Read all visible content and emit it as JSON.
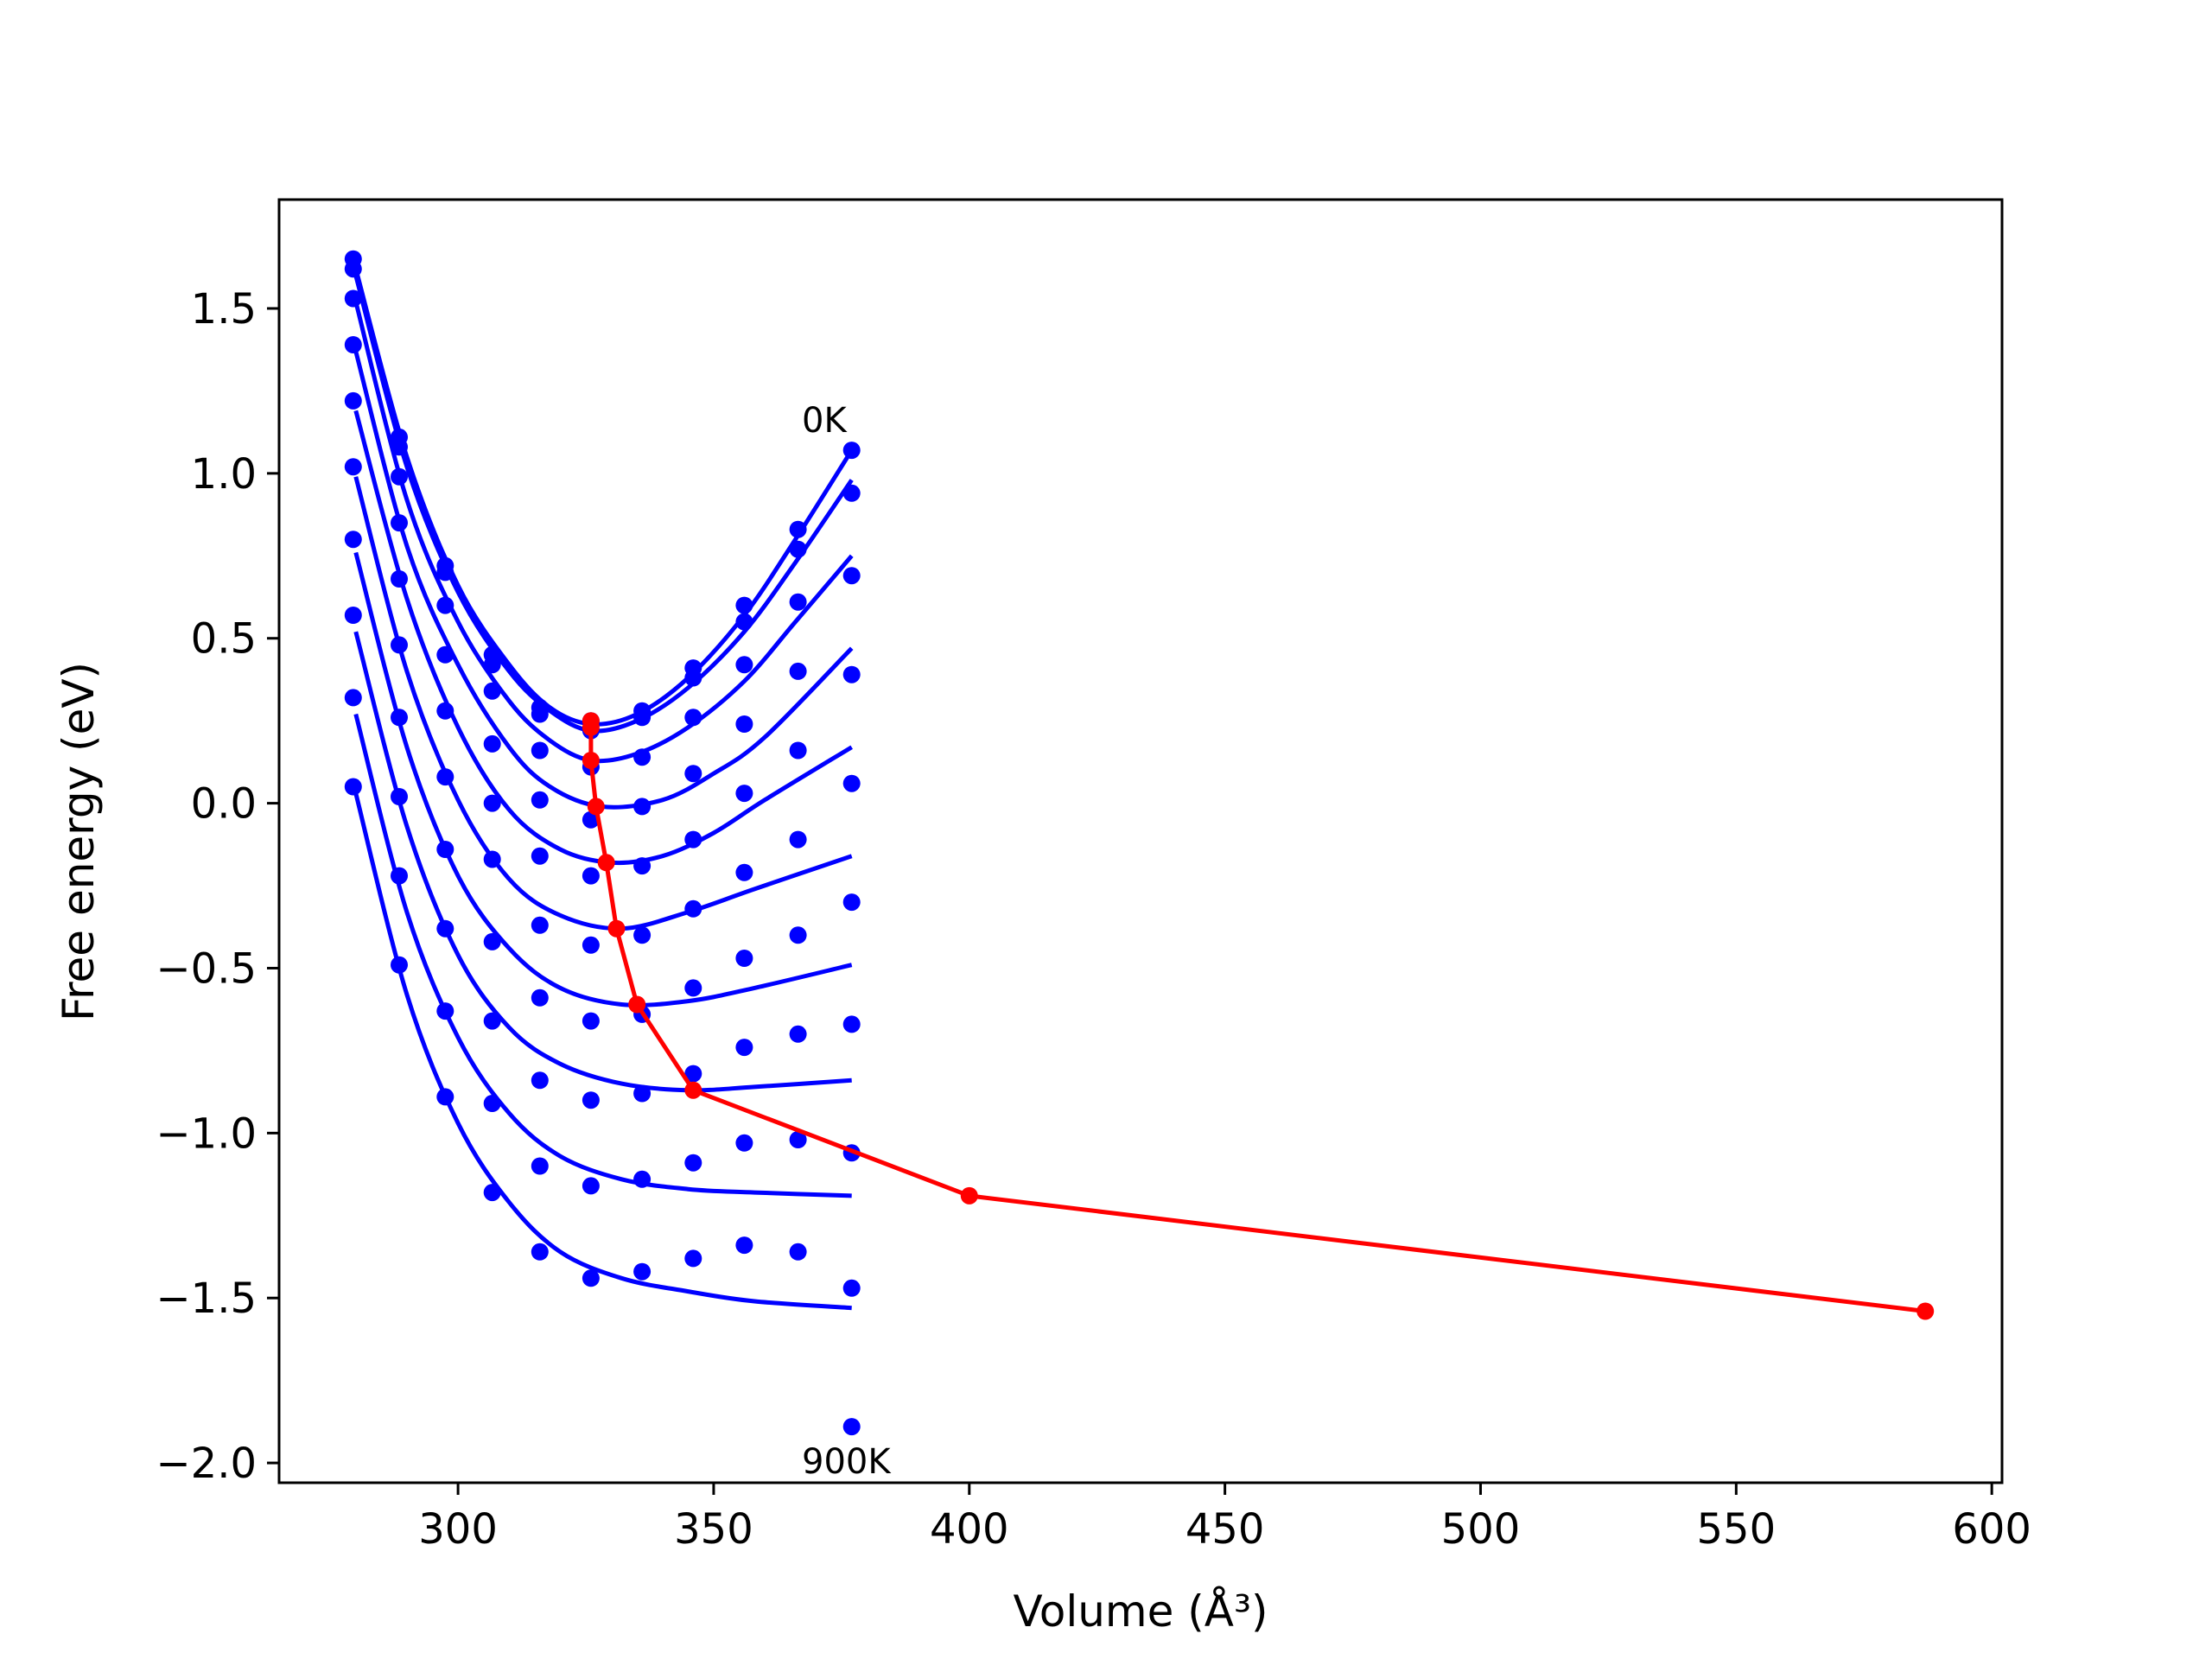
{
  "chart_data": {
    "type": "line",
    "title": "",
    "xlabel": "Volume (Å³)",
    "ylabel": "Free energy (eV)",
    "xlim": [
      265,
      602
    ],
    "ylim": [
      -2.06,
      1.83
    ],
    "xticks": [
      300,
      350,
      400,
      450,
      500,
      550,
      600
    ],
    "yticks": [
      -2.0,
      -1.5,
      -1.0,
      -0.5,
      0.0,
      0.5,
      1.0,
      1.5
    ],
    "xtick_labels": [
      "300",
      "350",
      "400",
      "450",
      "500",
      "550",
      "600"
    ],
    "ytick_labels": [
      "−2.0",
      "−1.5",
      "−1.0",
      "−0.5",
      "0.0",
      "0.5",
      "1.0",
      "1.5"
    ],
    "grid": false,
    "annotations": [
      {
        "text": "0K",
        "x": 372,
        "y": 1.13
      },
      {
        "text": "900K",
        "x": 372,
        "y": -2.03
      }
    ],
    "sample_volumes": [
      279.5,
      288.5,
      297.5,
      306.7,
      316,
      326,
      336,
      346,
      356,
      366.5,
      377
    ],
    "fit_curves": [
      {
        "temperature": "0K",
        "x": [
          280,
          290,
          300,
          310,
          318,
          326,
          335,
          345,
          356,
          366,
          377
        ],
        "y": [
          1.62,
          1.05,
          0.66,
          0.42,
          0.29,
          0.24,
          0.27,
          0.38,
          0.57,
          0.8,
          1.07
        ]
      },
      {
        "x": [
          280,
          290,
          300,
          310,
          318,
          326,
          335,
          345,
          356,
          366,
          377
        ],
        "y": [
          1.6,
          1.02,
          0.64,
          0.4,
          0.28,
          0.22,
          0.25,
          0.35,
          0.52,
          0.73,
          0.98
        ]
      },
      {
        "x": [
          280,
          290,
          300,
          310,
          318,
          326,
          335,
          345,
          356,
          366,
          377
        ],
        "y": [
          1.52,
          0.92,
          0.55,
          0.31,
          0.19,
          0.13,
          0.15,
          0.23,
          0.37,
          0.55,
          0.75
        ]
      },
      {
        "x": [
          280,
          290,
          300,
          310,
          318,
          328,
          340,
          350,
          360,
          377
        ],
        "y": [
          1.37,
          0.78,
          0.42,
          0.17,
          0.05,
          -0.01,
          0.01,
          0.09,
          0.2,
          0.47
        ]
      },
      {
        "x": [
          280,
          290,
          300,
          310,
          320,
          330,
          340,
          350,
          360,
          377
        ],
        "y": [
          1.19,
          0.62,
          0.23,
          -0.02,
          -0.14,
          -0.18,
          -0.16,
          -0.09,
          0.01,
          0.17
        ]
      },
      {
        "x": [
          280,
          290,
          300,
          310,
          320,
          332,
          345,
          358,
          377
        ],
        "y": [
          0.99,
          0.4,
          0.01,
          -0.23,
          -0.34,
          -0.38,
          -0.33,
          -0.26,
          -0.16
        ]
      },
      {
        "x": [
          280,
          290,
          300,
          310,
          320,
          332,
          345,
          358,
          377
        ],
        "y": [
          0.76,
          0.17,
          -0.22,
          -0.44,
          -0.56,
          -0.61,
          -0.6,
          -0.56,
          -0.49
        ]
      },
      {
        "x": [
          280,
          290,
          300,
          310,
          320,
          332,
          345,
          358,
          377
        ],
        "y": [
          0.52,
          -0.07,
          -0.46,
          -0.68,
          -0.79,
          -0.85,
          -0.87,
          -0.86,
          -0.84
        ]
      },
      {
        "x": [
          280,
          290,
          300,
          310,
          320,
          332,
          345,
          358,
          377
        ],
        "y": [
          0.27,
          -0.33,
          -0.71,
          -0.94,
          -1.07,
          -1.14,
          -1.17,
          -1.18,
          -1.19
        ]
      },
      {
        "temperature": "900K",
        "x": [
          280,
          290,
          300,
          310,
          320,
          332,
          345,
          358,
          377
        ],
        "y": [
          0.03,
          -0.58,
          -0.97,
          -1.21,
          -1.36,
          -1.44,
          -1.48,
          -1.51,
          -1.53
        ]
      }
    ],
    "data_points": [
      [
        1.65,
        1.11,
        0.72,
        0.45,
        0.29,
        0.25,
        0.28,
        0.41,
        0.6,
        0.83,
        1.07
      ],
      [
        1.62,
        1.08,
        0.7,
        0.42,
        0.27,
        0.22,
        0.26,
        0.38,
        0.55,
        0.77,
        0.94
      ],
      [
        1.53,
        0.99,
        0.6,
        0.34,
        0.16,
        0.11,
        0.14,
        0.26,
        0.42,
        0.61,
        0.69
      ],
      [
        1.39,
        0.85,
        0.45,
        0.18,
        0.01,
        -0.05,
        -0.01,
        0.09,
        0.24,
        0.4,
        0.39
      ],
      [
        1.22,
        0.68,
        0.28,
        0.0,
        -0.16,
        -0.22,
        -0.19,
        -0.11,
        0.03,
        0.16,
        0.06
      ],
      [
        1.02,
        0.48,
        0.08,
        -0.17,
        -0.37,
        -0.43,
        -0.4,
        -0.32,
        -0.21,
        -0.11,
        -0.3
      ],
      [
        0.8,
        0.26,
        -0.14,
        -0.42,
        -0.59,
        -0.66,
        -0.64,
        -0.56,
        -0.47,
        -0.4,
        -0.67
      ],
      [
        0.57,
        0.02,
        -0.38,
        -0.66,
        -0.84,
        -0.9,
        -0.88,
        -0.82,
        -0.74,
        -0.7,
        -1.06
      ],
      [
        0.32,
        -0.22,
        -0.63,
        -0.91,
        -1.1,
        -1.16,
        -1.14,
        -1.09,
        -1.03,
        -1.02,
        -1.47
      ],
      [
        0.05,
        -0.49,
        -0.89,
        -1.18,
        -1.36,
        -1.44,
        -1.42,
        -1.38,
        -1.34,
        -1.36,
        -1.89
      ]
    ],
    "minima_path": {
      "color": "#ff0000",
      "x": [
        326,
        326,
        326,
        327,
        329,
        331,
        335,
        346,
        400,
        587
      ],
      "y": [
        0.25,
        0.23,
        0.13,
        -0.01,
        -0.18,
        -0.38,
        -0.61,
        -0.87,
        -1.19,
        -1.54
      ]
    },
    "colors": {
      "curves": "#0000ff",
      "path": "#ff0000",
      "axes": "#000000"
    }
  }
}
